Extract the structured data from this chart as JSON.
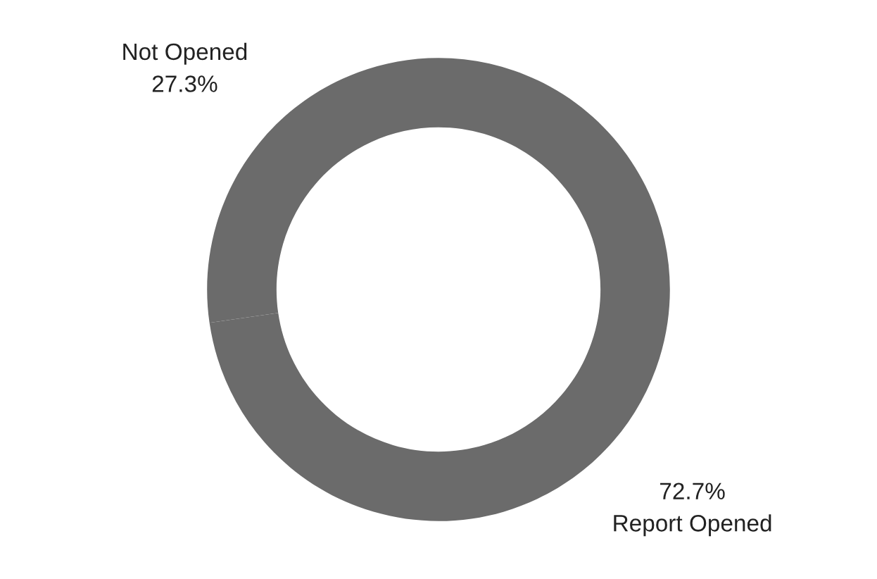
{
  "chart_data": {
    "type": "donut",
    "categories": [
      "Not Opened",
      "Report Opened"
    ],
    "values": [
      27.3,
      72.7
    ],
    "value_labels": [
      "27.3%",
      "72.7%"
    ],
    "colors": [
      "#6b6b6b",
      "#6b6b6b"
    ],
    "legend": false
  }
}
